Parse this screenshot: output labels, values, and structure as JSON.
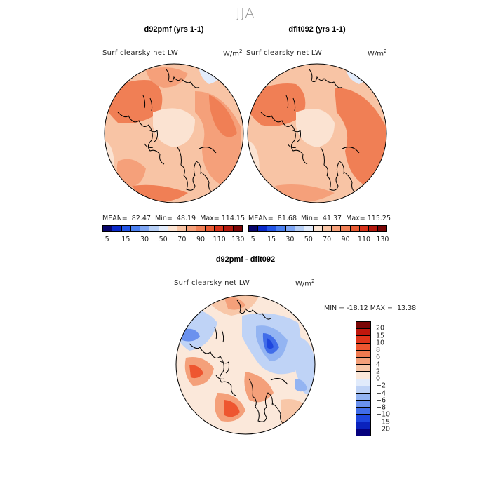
{
  "figure": {
    "title": "JJA"
  },
  "panels": [
    {
      "title": "d92pmf (yrs 1-1)",
      "variable": "Surf clearsky net LW",
      "units_base": "W/m",
      "units_exp": "2",
      "stats": "MEAN=  82.47  Min=  48.19  Max= 114.15"
    },
    {
      "title": "dflt092 (yrs 1-1)",
      "variable": "Surf clearsky net LW",
      "units_base": "W/m",
      "units_exp": "2",
      "stats": "MEAN=  81.68  Min=  41.37  Max= 115.25"
    },
    {
      "title": "d92pmf - dflt092",
      "variable": "Surf clearsky net LW",
      "units_base": "W/m",
      "units_exp": "2",
      "stats": "MIN = -18.12 MAX =  13.38"
    }
  ],
  "absolute_colorbar": {
    "colors": [
      "#08056b",
      "#0a29c9",
      "#2355e6",
      "#4b80f0",
      "#7fa6f3",
      "#b7cff5",
      "#e2ebfa",
      "#fbe3d2",
      "#f8c4a5",
      "#f5a07a",
      "#f07f55",
      "#e85b33",
      "#d8331a",
      "#b3190e",
      "#7a0606"
    ],
    "tick_labels": [
      "5",
      "15",
      "30",
      "50",
      "70",
      "90",
      "110",
      "130"
    ]
  },
  "difference_colorbar": {
    "colors": [
      "#7a0606",
      "#c0170d",
      "#e0351b",
      "#ee5630",
      "#f07a50",
      "#f4a07a",
      "#f8c7a8",
      "#fbe8da",
      "#e1ebfb",
      "#bfd3f6",
      "#93b4f2",
      "#6a91ee",
      "#416de9",
      "#1e46de",
      "#0a22bd",
      "#05007e"
    ],
    "tick_labels": [
      "20",
      "15",
      "10",
      "8",
      "6",
      "4",
      "2",
      "0",
      "−2",
      "−4",
      "−6",
      "−8",
      "−10",
      "−15",
      "−20"
    ]
  }
}
